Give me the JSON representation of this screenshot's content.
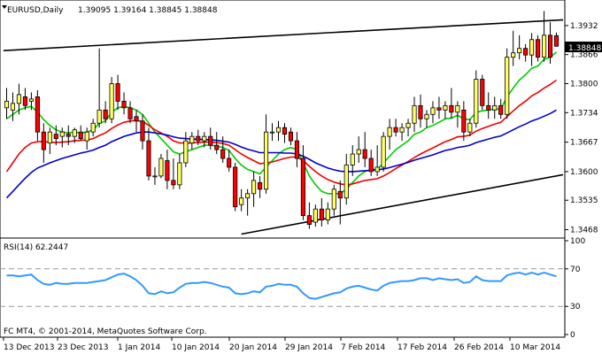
{
  "header": {
    "symbol": "EURUSD,Daily",
    "ohlc": "1.39095 1.39164 1.38845 1.38848"
  },
  "rsi_header": "RSI(14) 62.2447",
  "copyright": "FC MT4, © 2001-2014, MetaQuotes Software Corp.",
  "current_price": "1.38848",
  "colors": {
    "bull_candle": "#ffff66",
    "bear_candle": "#ff0000",
    "ema_fast": "#00cc00",
    "ema_mid": "#ee0000",
    "ema_slow": "#0000cc",
    "rsi_line": "#3399ff",
    "trendline": "#000000"
  },
  "chart_data": [
    {
      "type": "candlestick",
      "panel": "price",
      "ylim": [
        1.3455,
        1.3982
      ],
      "y_ticks": [
        "1.3932",
        "1.3866",
        "1.3800",
        "1.3734",
        "1.3667",
        "1.3600",
        "1.3535",
        "1.3468"
      ],
      "x_ticks": [
        "13 Dec 2013",
        "23 Dec 2013",
        "1 Jan 2014",
        "10 Jan 2014",
        "20 Jan 2014",
        "29 Jan 2014",
        "7 Feb 2014",
        "17 Feb 2014",
        "26 Feb 2014",
        "10 Mar 2014"
      ],
      "candles": [
        {
          "o": 1.3745,
          "h": 1.379,
          "l": 1.372,
          "c": 1.376
        },
        {
          "o": 1.374,
          "h": 1.378,
          "l": 1.3715,
          "c": 1.3755
        },
        {
          "o": 1.3755,
          "h": 1.38,
          "l": 1.373,
          "c": 1.3775
        },
        {
          "o": 1.377,
          "h": 1.379,
          "l": 1.374,
          "c": 1.375
        },
        {
          "o": 1.376,
          "h": 1.378,
          "l": 1.374,
          "c": 1.3765
        },
        {
          "o": 1.377,
          "h": 1.3785,
          "l": 1.367,
          "c": 1.369
        },
        {
          "o": 1.369,
          "h": 1.371,
          "l": 1.362,
          "c": 1.365
        },
        {
          "o": 1.3665,
          "h": 1.37,
          "l": 1.364,
          "c": 1.369
        },
        {
          "o": 1.3685,
          "h": 1.3705,
          "l": 1.366,
          "c": 1.3675
        },
        {
          "o": 1.368,
          "h": 1.37,
          "l": 1.3655,
          "c": 1.369
        },
        {
          "o": 1.3685,
          "h": 1.3705,
          "l": 1.366,
          "c": 1.368
        },
        {
          "o": 1.368,
          "h": 1.37,
          "l": 1.3665,
          "c": 1.3695
        },
        {
          "o": 1.369,
          "h": 1.3705,
          "l": 1.367,
          "c": 1.3675
        },
        {
          "o": 1.367,
          "h": 1.37,
          "l": 1.365,
          "c": 1.369
        },
        {
          "o": 1.369,
          "h": 1.372,
          "l": 1.368,
          "c": 1.371
        },
        {
          "o": 1.371,
          "h": 1.388,
          "l": 1.37,
          "c": 1.374
        },
        {
          "o": 1.374,
          "h": 1.376,
          "l": 1.371,
          "c": 1.372
        },
        {
          "o": 1.372,
          "h": 1.3815,
          "l": 1.371,
          "c": 1.38
        },
        {
          "o": 1.38,
          "h": 1.382,
          "l": 1.374,
          "c": 1.376
        },
        {
          "o": 1.376,
          "h": 1.378,
          "l": 1.373,
          "c": 1.3745
        },
        {
          "o": 1.3745,
          "h": 1.376,
          "l": 1.371,
          "c": 1.372
        },
        {
          "o": 1.3725,
          "h": 1.374,
          "l": 1.369,
          "c": 1.3715
        },
        {
          "o": 1.3715,
          "h": 1.373,
          "l": 1.365,
          "c": 1.367
        },
        {
          "o": 1.367,
          "h": 1.37,
          "l": 1.358,
          "c": 1.359
        },
        {
          "o": 1.359,
          "h": 1.361,
          "l": 1.357,
          "c": 1.359
        },
        {
          "o": 1.359,
          "h": 1.364,
          "l": 1.3585,
          "c": 1.363
        },
        {
          "o": 1.3625,
          "h": 1.365,
          "l": 1.356,
          "c": 1.358
        },
        {
          "o": 1.358,
          "h": 1.363,
          "l": 1.356,
          "c": 1.357
        },
        {
          "o": 1.357,
          "h": 1.364,
          "l": 1.356,
          "c": 1.362
        },
        {
          "o": 1.362,
          "h": 1.369,
          "l": 1.361,
          "c": 1.367
        },
        {
          "o": 1.3665,
          "h": 1.369,
          "l": 1.365,
          "c": 1.368
        },
        {
          "o": 1.368,
          "h": 1.3695,
          "l": 1.366,
          "c": 1.367
        },
        {
          "o": 1.367,
          "h": 1.369,
          "l": 1.3655,
          "c": 1.368
        },
        {
          "o": 1.368,
          "h": 1.37,
          "l": 1.365,
          "c": 1.366
        },
        {
          "o": 1.366,
          "h": 1.369,
          "l": 1.364,
          "c": 1.365
        },
        {
          "o": 1.365,
          "h": 1.368,
          "l": 1.362,
          "c": 1.363
        },
        {
          "o": 1.363,
          "h": 1.365,
          "l": 1.36,
          "c": 1.361
        },
        {
          "o": 1.361,
          "h": 1.362,
          "l": 1.351,
          "c": 1.352
        },
        {
          "o": 1.3525,
          "h": 1.356,
          "l": 1.351,
          "c": 1.354
        },
        {
          "o": 1.354,
          "h": 1.356,
          "l": 1.35,
          "c": 1.355
        },
        {
          "o": 1.355,
          "h": 1.36,
          "l": 1.352,
          "c": 1.358
        },
        {
          "o": 1.3575,
          "h": 1.359,
          "l": 1.354,
          "c": 1.356
        },
        {
          "o": 1.356,
          "h": 1.373,
          "l": 1.355,
          "c": 1.369
        },
        {
          "o": 1.369,
          "h": 1.371,
          "l": 1.367,
          "c": 1.369
        },
        {
          "o": 1.369,
          "h": 1.3715,
          "l": 1.367,
          "c": 1.37
        },
        {
          "o": 1.37,
          "h": 1.371,
          "l": 1.3665,
          "c": 1.3685
        },
        {
          "o": 1.369,
          "h": 1.37,
          "l": 1.366,
          "c": 1.367
        },
        {
          "o": 1.367,
          "h": 1.369,
          "l": 1.361,
          "c": 1.363
        },
        {
          "o": 1.363,
          "h": 1.366,
          "l": 1.349,
          "c": 1.35
        },
        {
          "o": 1.35,
          "h": 1.353,
          "l": 1.347,
          "c": 1.348
        },
        {
          "o": 1.3485,
          "h": 1.3525,
          "l": 1.3475,
          "c": 1.3515
        },
        {
          "o": 1.3515,
          "h": 1.354,
          "l": 1.3475,
          "c": 1.349
        },
        {
          "o": 1.349,
          "h": 1.353,
          "l": 1.348,
          "c": 1.3515
        },
        {
          "o": 1.3515,
          "h": 1.357,
          "l": 1.35,
          "c": 1.356
        },
        {
          "o": 1.3555,
          "h": 1.358,
          "l": 1.348,
          "c": 1.354
        },
        {
          "o": 1.354,
          "h": 1.364,
          "l": 1.3525,
          "c": 1.3615
        },
        {
          "o": 1.3615,
          "h": 1.366,
          "l": 1.359,
          "c": 1.364
        },
        {
          "o": 1.364,
          "h": 1.368,
          "l": 1.362,
          "c": 1.365
        },
        {
          "o": 1.365,
          "h": 1.369,
          "l": 1.361,
          "c": 1.363
        },
        {
          "o": 1.363,
          "h": 1.365,
          "l": 1.359,
          "c": 1.36
        },
        {
          "o": 1.36,
          "h": 1.366,
          "l": 1.359,
          "c": 1.361
        },
        {
          "o": 1.361,
          "h": 1.369,
          "l": 1.36,
          "c": 1.368
        },
        {
          "o": 1.368,
          "h": 1.372,
          "l": 1.365,
          "c": 1.37
        },
        {
          "o": 1.37,
          "h": 1.372,
          "l": 1.368,
          "c": 1.369
        },
        {
          "o": 1.369,
          "h": 1.371,
          "l": 1.367,
          "c": 1.37
        },
        {
          "o": 1.37,
          "h": 1.372,
          "l": 1.368,
          "c": 1.371
        },
        {
          "o": 1.371,
          "h": 1.377,
          "l": 1.369,
          "c": 1.375
        },
        {
          "o": 1.375,
          "h": 1.3775,
          "l": 1.37,
          "c": 1.372
        },
        {
          "o": 1.372,
          "h": 1.374,
          "l": 1.37,
          "c": 1.373
        },
        {
          "o": 1.373,
          "h": 1.376,
          "l": 1.371,
          "c": 1.3745
        },
        {
          "o": 1.3745,
          "h": 1.377,
          "l": 1.372,
          "c": 1.374
        },
        {
          "o": 1.374,
          "h": 1.376,
          "l": 1.372,
          "c": 1.375
        },
        {
          "o": 1.375,
          "h": 1.379,
          "l": 1.372,
          "c": 1.3735
        },
        {
          "o": 1.3735,
          "h": 1.376,
          "l": 1.37,
          "c": 1.375
        },
        {
          "o": 1.374,
          "h": 1.376,
          "l": 1.367,
          "c": 1.369
        },
        {
          "o": 1.369,
          "h": 1.372,
          "l": 1.368,
          "c": 1.371
        },
        {
          "o": 1.371,
          "h": 1.383,
          "l": 1.37,
          "c": 1.381
        },
        {
          "o": 1.381,
          "h": 1.382,
          "l": 1.374,
          "c": 1.375
        },
        {
          "o": 1.375,
          "h": 1.378,
          "l": 1.372,
          "c": 1.374
        },
        {
          "o": 1.374,
          "h": 1.377,
          "l": 1.372,
          "c": 1.375
        },
        {
          "o": 1.375,
          "h": 1.3765,
          "l": 1.372,
          "c": 1.373
        },
        {
          "o": 1.373,
          "h": 1.388,
          "l": 1.372,
          "c": 1.386
        },
        {
          "o": 1.386,
          "h": 1.392,
          "l": 1.384,
          "c": 1.387
        },
        {
          "o": 1.387,
          "h": 1.391,
          "l": 1.3855,
          "c": 1.388
        },
        {
          "o": 1.388,
          "h": 1.389,
          "l": 1.385,
          "c": 1.3865
        },
        {
          "o": 1.3865,
          "h": 1.3915,
          "l": 1.384,
          "c": 1.39
        },
        {
          "o": 1.39,
          "h": 1.391,
          "l": 1.385,
          "c": 1.386
        },
        {
          "o": 1.386,
          "h": 1.3965,
          "l": 1.385,
          "c": 1.391
        },
        {
          "o": 1.391,
          "h": 1.394,
          "l": 1.3845,
          "c": 1.386
        },
        {
          "o": 1.3909,
          "h": 1.3916,
          "l": 1.3884,
          "c": 1.3885
        }
      ],
      "ema_fast": [
        1.372,
        1.373,
        1.374,
        1.3745,
        1.3748,
        1.3735,
        1.3718,
        1.3705,
        1.3695,
        1.369,
        1.3688,
        1.369,
        1.3688,
        1.369,
        1.3695,
        1.371,
        1.3715,
        1.3735,
        1.3745,
        1.3748,
        1.3745,
        1.374,
        1.373,
        1.371,
        1.369,
        1.3675,
        1.366,
        1.3645,
        1.364,
        1.3645,
        1.365,
        1.3655,
        1.366,
        1.366,
        1.3658,
        1.3655,
        1.3648,
        1.363,
        1.3615,
        1.3605,
        1.36,
        1.3595,
        1.361,
        1.3625,
        1.364,
        1.365,
        1.3655,
        1.365,
        1.362,
        1.359,
        1.357,
        1.3555,
        1.355,
        1.355,
        1.355,
        1.356,
        1.3575,
        1.359,
        1.36,
        1.3605,
        1.3605,
        1.362,
        1.3635,
        1.365,
        1.366,
        1.367,
        1.3685,
        1.369,
        1.37,
        1.3705,
        1.3712,
        1.372,
        1.3722,
        1.3728,
        1.372,
        1.3718,
        1.3735,
        1.3738,
        1.374,
        1.3742,
        1.3742,
        1.377,
        1.379,
        1.3808,
        1.382,
        1.3835,
        1.384,
        1.3855,
        1.386,
        1.3872
      ],
      "ema_mid": [
        1.36,
        1.362,
        1.364,
        1.3655,
        1.3665,
        1.3668,
        1.3668,
        1.3667,
        1.3666,
        1.3667,
        1.3668,
        1.367,
        1.3671,
        1.3672,
        1.3675,
        1.3682,
        1.3688,
        1.3698,
        1.3706,
        1.3712,
        1.3715,
        1.3716,
        1.3714,
        1.3705,
        1.3695,
        1.3688,
        1.368,
        1.367,
        1.3665,
        1.3665,
        1.3665,
        1.3666,
        1.3667,
        1.3667,
        1.3666,
        1.3664,
        1.366,
        1.365,
        1.364,
        1.3632,
        1.3625,
        1.3618,
        1.362,
        1.3622,
        1.3626,
        1.363,
        1.3633,
        1.3633,
        1.3625,
        1.3612,
        1.36,
        1.359,
        1.3582,
        1.3576,
        1.3572,
        1.357,
        1.3572,
        1.3576,
        1.358,
        1.3582,
        1.3584,
        1.359,
        1.3598,
        1.3607,
        1.3615,
        1.3623,
        1.3632,
        1.364,
        1.3647,
        1.3654,
        1.3661,
        1.3668,
        1.3673,
        1.3679,
        1.368,
        1.3683,
        1.3692,
        1.3698,
        1.3703,
        1.3708,
        1.3712,
        1.3725,
        1.3738,
        1.375,
        1.376,
        1.3772,
        1.378,
        1.379,
        1.3798,
        1.3808
      ],
      "ema_slow": [
        1.354,
        1.3555,
        1.357,
        1.3585,
        1.3598,
        1.3608,
        1.3614,
        1.362,
        1.3625,
        1.363,
        1.3634,
        1.3638,
        1.3642,
        1.3645,
        1.3649,
        1.3655,
        1.366,
        1.3668,
        1.3674,
        1.368,
        1.3684,
        1.3688,
        1.369,
        1.369,
        1.3688,
        1.3686,
        1.3683,
        1.3679,
        1.3676,
        1.3675,
        1.3674,
        1.3673,
        1.3673,
        1.3672,
        1.3671,
        1.3669,
        1.3667,
        1.3662,
        1.3656,
        1.3651,
        1.3647,
        1.3643,
        1.3643,
        1.3643,
        1.3643,
        1.3642,
        1.3642,
        1.364,
        1.3635,
        1.3628,
        1.362,
        1.3614,
        1.3608,
        1.3604,
        1.3601,
        1.36,
        1.36,
        1.3601,
        1.3602,
        1.3603,
        1.3604,
        1.3606,
        1.3609,
        1.3613,
        1.3617,
        1.3621,
        1.3626,
        1.363,
        1.3634,
        1.3638,
        1.3643,
        1.3648,
        1.3651,
        1.3655,
        1.3657,
        1.366,
        1.3666,
        1.367,
        1.3674,
        1.3678,
        1.3681,
        1.3688,
        1.3695,
        1.3702,
        1.3708,
        1.3715,
        1.372,
        1.3726,
        1.3732,
        1.374
      ],
      "trendlines": [
        {
          "from": {
            "i": 0,
            "p": 1.3875
          },
          "to": {
            "i": 89,
            "p": 1.3945
          }
        },
        {
          "from": {
            "i": 38,
            "p": 1.3458
          },
          "to": {
            "i": 89,
            "p": 1.3593
          }
        }
      ]
    },
    {
      "type": "line",
      "panel": "rsi",
      "name": "RSI(14)",
      "ylim": [
        0,
        100
      ],
      "y_ticks": [
        "100",
        "70",
        "30",
        "0"
      ],
      "levels": [
        70,
        30
      ],
      "values": [
        63,
        63,
        62,
        63,
        64,
        58,
        54,
        53,
        55,
        54,
        54,
        55,
        55,
        55,
        56,
        57,
        58,
        61,
        64,
        65,
        62,
        58,
        52,
        44,
        43,
        46,
        44,
        45,
        50,
        54,
        55,
        55,
        56,
        55,
        53,
        51,
        50,
        44,
        43,
        44,
        46,
        45,
        51,
        52,
        54,
        53,
        53,
        51,
        44,
        39,
        38,
        40,
        42,
        44,
        45,
        49,
        51,
        52,
        50,
        48,
        47,
        52,
        55,
        56,
        57,
        57,
        58,
        60,
        60,
        58,
        60,
        59,
        58,
        59,
        55,
        56,
        62,
        58,
        57,
        57,
        57,
        63,
        65,
        66,
        64,
        66,
        64,
        66,
        64,
        62
      ]
    }
  ]
}
